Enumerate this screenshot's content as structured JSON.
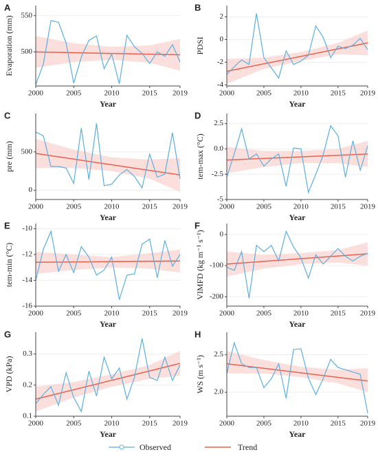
{
  "legend": [
    {
      "name": "Observed",
      "color": "#5aaee0"
    },
    {
      "name": "Trend",
      "color": "#e8604c"
    }
  ],
  "band_color": "#f8c9c4",
  "chart_data": [
    {
      "type": "line",
      "panel": "A",
      "ylabel": "Evaporation (mm)",
      "xlabel": "Year",
      "x": [
        2000,
        2001,
        2002,
        2003,
        2004,
        2005,
        2006,
        2007,
        2008,
        2009,
        2010,
        2011,
        2012,
        2013,
        2014,
        2015,
        2016,
        2017,
        2018,
        2019
      ],
      "xlim": [
        2000,
        2019
      ],
      "xticks": [
        2000,
        2005,
        2010,
        2015,
        2019
      ],
      "ylim": [
        453,
        564
      ],
      "yticks": [
        500,
        550
      ],
      "grid": true,
      "observed": [
        455,
        483,
        543,
        541,
        512,
        457,
        493,
        516,
        522,
        477,
        497,
        456,
        523,
        507,
        498,
        484,
        500,
        494,
        510,
        486
      ],
      "trend": {
        "x": [
          2000,
          2019
        ],
        "values": [
          500,
          496
        ]
      },
      "band": {
        "x": [
          2000,
          2005,
          2010,
          2015,
          2019
        ],
        "lower": [
          478,
          486,
          489,
          485,
          474
        ],
        "upper": [
          522,
          512,
          507,
          509,
          518
        ]
      }
    },
    {
      "type": "line",
      "panel": "B",
      "ylabel": "PDSI",
      "xlabel": "Year",
      "x": [
        2000,
        2001,
        2002,
        2003,
        2004,
        2005,
        2006,
        2007,
        2008,
        2009,
        2010,
        2011,
        2012,
        2013,
        2014,
        2015,
        2016,
        2017,
        2018,
        2019
      ],
      "xlim": [
        2000,
        2019
      ],
      "xticks": [
        2000,
        2005,
        2010,
        2015,
        2019
      ],
      "ylim": [
        -4.1,
        3
      ],
      "yticks": [
        -4,
        -2,
        0,
        2
      ],
      "grid": true,
      "observed": [
        -3.1,
        -2.4,
        -1.8,
        -2.2,
        2.3,
        -1.6,
        -2.5,
        -3.4,
        -1.0,
        -2.2,
        -1.9,
        -1.4,
        1.2,
        0.2,
        -1.6,
        -0.6,
        -0.8,
        -0.5,
        0.1,
        -0.9
      ],
      "trend": {
        "x": [
          2000,
          2019
        ],
        "values": [
          -2.8,
          -0.3
        ]
      },
      "band": {
        "x": [
          2000,
          2005,
          2010,
          2015,
          2019
        ],
        "lower": [
          -3.9,
          -2.6,
          -1.9,
          -1.3,
          -1.4
        ],
        "upper": [
          -1.7,
          -1.6,
          -1.1,
          -0.3,
          0.8
        ]
      }
    },
    {
      "type": "line",
      "panel": "C",
      "ylabel": "pre (mm)",
      "xlabel": "Year",
      "x": [
        2000,
        2001,
        2002,
        2003,
        2004,
        2005,
        2006,
        2007,
        2008,
        2009,
        2010,
        2011,
        2012,
        2013,
        2014,
        2015,
        2016,
        2017,
        2018,
        2019
      ],
      "xlim": [
        2000,
        2019
      ],
      "xticks": [
        2000,
        2005,
        2010,
        2015,
        2019
      ],
      "ylim": [
        -120,
        1000
      ],
      "yticks": [
        0,
        500
      ],
      "grid": true,
      "observed": [
        760,
        710,
        310,
        310,
        290,
        90,
        810,
        140,
        870,
        60,
        80,
        200,
        270,
        180,
        30,
        470,
        170,
        210,
        750,
        150
      ],
      "trend": {
        "x": [
          2000,
          2019
        ],
        "values": [
          480,
          200
        ]
      },
      "band": {
        "x": [
          2000,
          2005,
          2010,
          2015,
          2019
        ],
        "lower": [
          290,
          290,
          250,
          150,
          -20
        ],
        "upper": [
          670,
          530,
          430,
          400,
          420
        ]
      }
    },
    {
      "type": "line",
      "panel": "D",
      "ylabel": "tem-max (°C)",
      "xlabel": "Year",
      "x": [
        2000,
        2001,
        2002,
        2003,
        2004,
        2005,
        2006,
        2007,
        2008,
        2009,
        2010,
        2011,
        2012,
        2013,
        2014,
        2015,
        2016,
        2017,
        2018,
        2019
      ],
      "xlim": [
        2000,
        2019
      ],
      "xticks": [
        2000,
        2005,
        2010,
        2015,
        2019
      ],
      "ylim": [
        -5,
        3.5
      ],
      "yticks": [
        -5,
        -2.5,
        {
          "value": 0,
          "label": "0.0"
        },
        2.5
      ],
      "grid": true,
      "observed": [
        -2.8,
        -0.5,
        2.0,
        -1.0,
        -0.5,
        -1.7,
        -1.0,
        -0.5,
        -3.7,
        0.1,
        0.0,
        -4.3,
        -2.5,
        -0.6,
        2.3,
        1.3,
        -2.8,
        0.8,
        -2.1,
        0.3
      ],
      "trend": {
        "x": [
          2000,
          2019
        ],
        "values": [
          -1.1,
          -0.5
        ]
      },
      "band": {
        "x": [
          2000,
          2005,
          2010,
          2015,
          2019
        ],
        "lower": [
          -2.4,
          -1.8,
          -1.4,
          -1.4,
          -1.8
        ],
        "upper": [
          0.2,
          -0.2,
          -0.2,
          0.0,
          0.8
        ]
      }
    },
    {
      "type": "line",
      "panel": "E",
      "ylabel": "tem-min (°C)",
      "xlabel": "Year",
      "x": [
        2000,
        2001,
        2002,
        2003,
        2004,
        2005,
        2006,
        2007,
        2008,
        2009,
        2010,
        2011,
        2012,
        2013,
        2014,
        2015,
        2016,
        2017,
        2018,
        2019
      ],
      "xlim": [
        2000,
        2019
      ],
      "xticks": [
        2000,
        2005,
        2010,
        2015,
        2019
      ],
      "ylim": [
        -16,
        -9.6
      ],
      "yticks": [
        -16,
        -14,
        -12,
        -10
      ],
      "grid": true,
      "observed": [
        -14.0,
        -11.6,
        -10.2,
        -13.3,
        -12.0,
        -13.4,
        -11.4,
        -12.2,
        -13.6,
        -13.2,
        -12.2,
        -15.5,
        -13.6,
        -13.5,
        -11.2,
        -10.8,
        -13.8,
        -10.9,
        -12.9,
        -12.0
      ],
      "trend": {
        "x": [
          2000,
          2019
        ],
        "values": [
          -12.6,
          -12.5
        ]
      },
      "band": {
        "x": [
          2000,
          2005,
          2010,
          2015,
          2019
        ],
        "lower": [
          -13.5,
          -13.2,
          -13.0,
          -13.1,
          -13.4
        ],
        "upper": [
          -11.8,
          -12.0,
          -12.2,
          -11.9,
          -11.6
        ]
      }
    },
    {
      "type": "line",
      "panel": "F",
      "ylabel": "VIMFD (kg m⁻¹ s⁻¹)",
      "xlabel": "Year",
      "x": [
        2000,
        2001,
        2002,
        2003,
        2004,
        2005,
        2006,
        2007,
        2008,
        2009,
        2010,
        2011,
        2012,
        2013,
        2014,
        2015,
        2016,
        2017,
        2018,
        2019
      ],
      "xlim": [
        2000,
        2019
      ],
      "xticks": [
        2000,
        2005,
        2010,
        2015,
        2019
      ],
      "ylim": [
        -230,
        35
      ],
      "yticks": [
        -200,
        -100,
        0
      ],
      "grid": true,
      "observed": [
        -105,
        -115,
        -55,
        -205,
        -35,
        -55,
        -35,
        -85,
        10,
        -40,
        -75,
        -140,
        -65,
        -95,
        -70,
        -45,
        -70,
        -85,
        -70,
        -60
      ],
      "trend": {
        "x": [
          2000,
          2019
        ],
        "values": [
          -95,
          -62
        ]
      },
      "band": {
        "x": [
          2000,
          2005,
          2010,
          2015,
          2019
        ],
        "lower": [
          -135,
          -110,
          -95,
          -90,
          -100
        ],
        "upper": [
          -55,
          -65,
          -60,
          -50,
          -25
        ]
      }
    },
    {
      "type": "line",
      "panel": "G",
      "ylabel": "VPD (kPa)",
      "xlabel": "Year",
      "x": [
        2000,
        2001,
        2002,
        2003,
        2004,
        2005,
        2006,
        2007,
        2008,
        2009,
        2010,
        2011,
        2012,
        2013,
        2014,
        2015,
        2016,
        2017,
        2018,
        2019
      ],
      "xlim": [
        2000,
        2019
      ],
      "xticks": [
        2000,
        2005,
        2010,
        2015,
        2019
      ],
      "ylim": [
        0.1,
        0.37
      ],
      "yticks": [
        0.1,
        0.2,
        0.3
      ],
      "grid": true,
      "observed": [
        0.14,
        0.17,
        0.195,
        0.135,
        0.24,
        0.16,
        0.115,
        0.245,
        0.165,
        0.29,
        0.22,
        0.255,
        0.155,
        0.225,
        0.35,
        0.225,
        0.215,
        0.29,
        0.215,
        0.265
      ],
      "trend": {
        "x": [
          2000,
          2019
        ],
        "values": [
          0.155,
          0.27
        ]
      },
      "band": {
        "x": [
          2000,
          2005,
          2010,
          2015,
          2019
        ],
        "lower": [
          0.115,
          0.16,
          0.195,
          0.22,
          0.23
        ],
        "upper": [
          0.195,
          0.21,
          0.235,
          0.265,
          0.31
        ]
      }
    },
    {
      "type": "line",
      "panel": "H",
      "ylabel": "WS (m s⁻¹)",
      "xlabel": "Year",
      "x": [
        2000,
        2001,
        2002,
        2003,
        2004,
        2005,
        2006,
        2007,
        2008,
        2009,
        2010,
        2011,
        2012,
        2013,
        2014,
        2015,
        2016,
        2017,
        2018,
        2019
      ],
      "xlim": [
        2000,
        2019
      ],
      "xticks": [
        2000,
        2005,
        2010,
        2015,
        2019
      ],
      "ylim": [
        1.68,
        2.8
      ],
      "yticks": [
        {
          "value": 2,
          "label": "2.0"
        },
        2.5
      ],
      "grid": true,
      "observed": [
        2.25,
        2.66,
        2.38,
        2.33,
        2.33,
        2.06,
        2.18,
        2.38,
        1.92,
        2.57,
        2.58,
        2.19,
        1.97,
        2.18,
        2.44,
        2.33,
        2.3,
        2.27,
        2.24,
        1.72
      ],
      "trend": {
        "x": [
          2000,
          2019
        ],
        "values": [
          2.38,
          2.15
        ]
      },
      "band": {
        "x": [
          2000,
          2005,
          2010,
          2015,
          2019
        ],
        "lower": [
          2.25,
          2.25,
          2.2,
          2.12,
          2.0
        ],
        "upper": [
          2.55,
          2.43,
          2.34,
          2.3,
          2.32
        ]
      }
    }
  ]
}
